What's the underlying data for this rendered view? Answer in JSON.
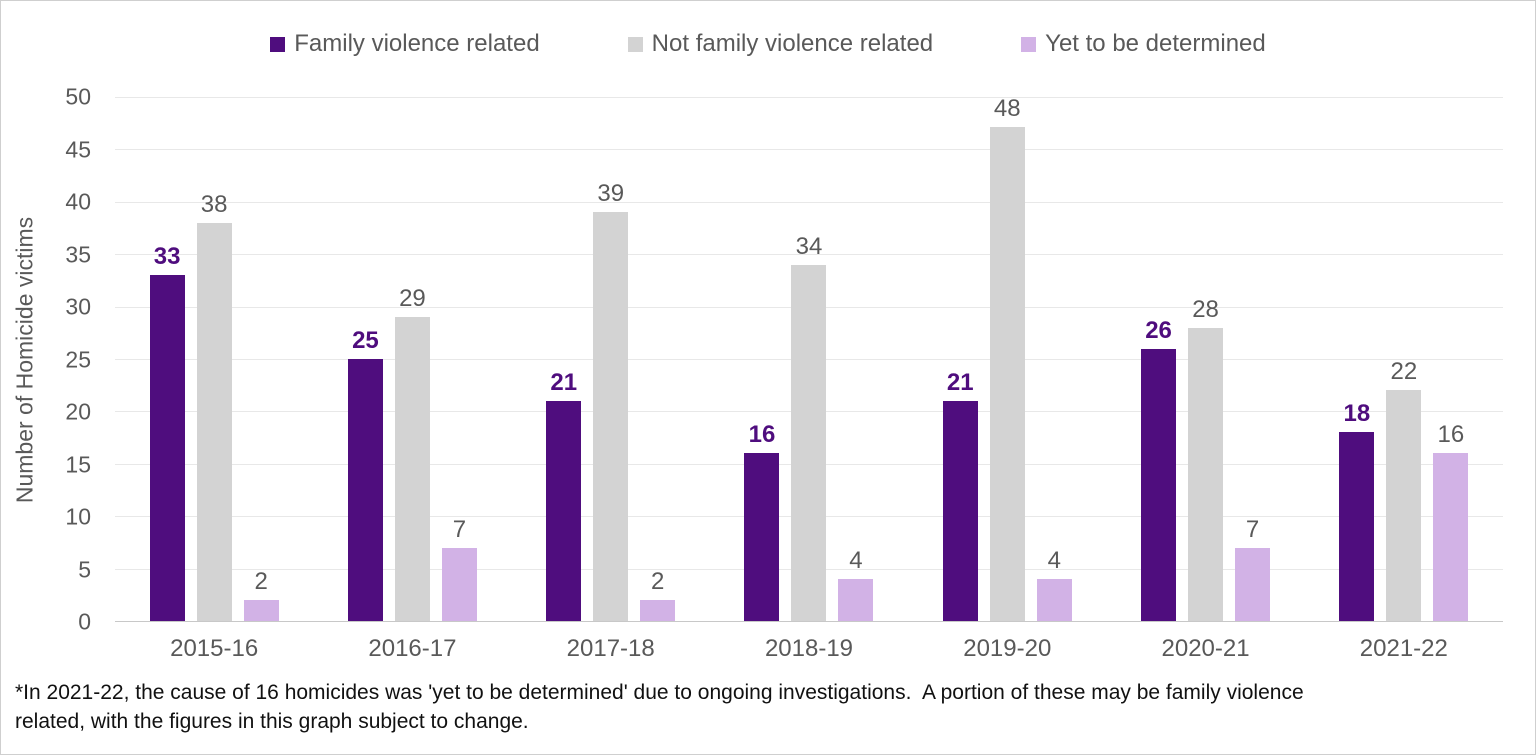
{
  "chart_data": {
    "type": "bar",
    "title": "",
    "xlabel": "",
    "ylabel": "Number of Homicide victims",
    "ylim": [
      0,
      50
    ],
    "ytick_step": 5,
    "grid": true,
    "legend_position": "top",
    "categories": [
      "2015-16",
      "2016-17",
      "2017-18",
      "2018-19",
      "2019-20",
      "2020-21",
      "2021-22"
    ],
    "series": [
      {
        "name": "Family violence related",
        "color": "#4f0d7e",
        "label_color": "#4f0d7e",
        "label_bold": true,
        "values": [
          33,
          25,
          21,
          16,
          21,
          26,
          18
        ]
      },
      {
        "name": "Not family violence related",
        "color": "#d3d3d3",
        "label_color": "#595959",
        "label_bold": false,
        "values": [
          38,
          29,
          39,
          34,
          48,
          28,
          22
        ]
      },
      {
        "name": "Yet to be determined",
        "color": "#d2b2e6",
        "label_color": "#595959",
        "label_bold": false,
        "values": [
          2,
          7,
          2,
          4,
          4,
          7,
          16
        ]
      }
    ]
  },
  "footnote": "*In 2021-22, the cause of 16 homicides was 'yet to be determined' due to ongoing investigations.  A portion of these may be family violence related, with the figures in this graph subject to change."
}
